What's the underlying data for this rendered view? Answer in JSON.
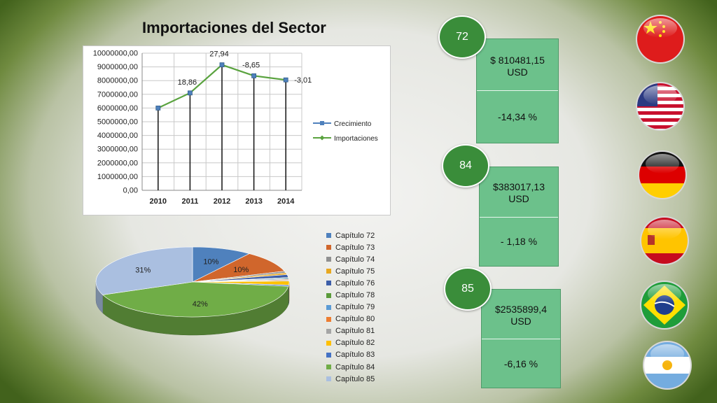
{
  "title": "Importaciones del Sector",
  "chart_data": [
    {
      "type": "line",
      "title": "",
      "x": [
        "2010",
        "2011",
        "2012",
        "2013",
        "2014"
      ],
      "ylim": [
        0,
        10000000
      ],
      "yticks": [
        "0,00",
        "1000000,00",
        "2000000,00",
        "3000000,00",
        "4000000,00",
        "5000000,00",
        "6000000,00",
        "7000000,00",
        "8000000,00",
        "9000000,00",
        "10000000,00"
      ],
      "series": [
        {
          "name": "Crecimiento",
          "values": [
            6000000,
            7100000,
            9150000,
            8350000,
            8050000
          ],
          "color": "#4f81bd"
        },
        {
          "name": "Importaciones",
          "values": [
            6000000,
            7100000,
            9150000,
            8350000,
            8050000
          ],
          "color": "#5aa33f"
        }
      ],
      "data_labels": [
        "",
        "18,86",
        "27,94",
        "-8,65",
        "-3,01"
      ],
      "grid": true,
      "legend": "right"
    },
    {
      "type": "pie",
      "categories": [
        "Capítulo 72",
        "Capítulo 73",
        "Capítulo 74",
        "Capítulo 75",
        "Capítulo 76",
        "Capítulo 78",
        "Capítulo 79",
        "Capítulo 80",
        "Capítulo 81",
        "Capítulo 82",
        "Capítulo 83",
        "Capítulo 84",
        "Capítulo 85"
      ],
      "values": [
        10,
        10,
        0.8,
        0.8,
        1.4,
        0.3,
        0.5,
        0.4,
        0.4,
        1.8,
        0.6,
        42,
        31
      ],
      "data_labels": [
        "10%",
        "10%",
        "",
        "",
        "",
        "",
        "",
        "",
        "",
        "",
        "",
        "42%",
        "31%"
      ],
      "colors": [
        "#4f81bd",
        "#d0662c",
        "#909090",
        "#e8a820",
        "#3d5ea8",
        "#5a9b3a",
        "#5b9bd5",
        "#ed7d31",
        "#a5a5a5",
        "#ffc000",
        "#4472c4",
        "#70ad47",
        "#aabfe0"
      ],
      "legend": "right"
    }
  ],
  "cards": [
    {
      "badge": "72",
      "amount": "$ 810481,15\nUSD",
      "percent": "-14,34 %"
    },
    {
      "badge": "84",
      "amount": "$383017,13\nUSD",
      "percent": "- 1,18 %"
    },
    {
      "badge": "85",
      "amount": "$2535899,4\nUSD",
      "percent": "-6,16 %"
    }
  ],
  "flags": [
    "china-flag-icon",
    "usa-flag-icon",
    "germany-flag-icon",
    "spain-flag-icon",
    "brazil-flag-icon",
    "argentina-flag-icon"
  ]
}
